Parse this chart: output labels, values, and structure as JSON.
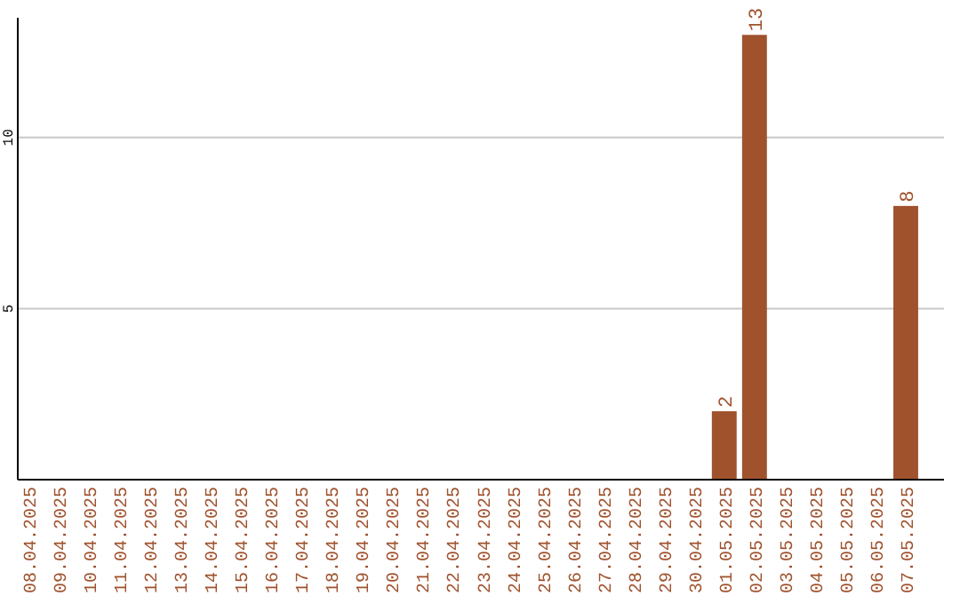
{
  "chart_data": {
    "type": "bar",
    "categories": [
      "08.04.2025",
      "09.04.2025",
      "10.04.2025",
      "11.04.2025",
      "12.04.2025",
      "13.04.2025",
      "14.04.2025",
      "15.04.2025",
      "16.04.2025",
      "17.04.2025",
      "18.04.2025",
      "19.04.2025",
      "20.04.2025",
      "21.04.2025",
      "22.04.2025",
      "23.04.2025",
      "24.04.2025",
      "25.04.2025",
      "26.04.2025",
      "27.04.2025",
      "28.04.2025",
      "29.04.2025",
      "30.04.2025",
      "01.05.2025",
      "02.05.2025",
      "03.05.2025",
      "04.05.2025",
      "05.05.2025",
      "06.05.2025",
      "07.05.2025"
    ],
    "values": [
      0,
      0,
      0,
      0,
      0,
      0,
      0,
      0,
      0,
      0,
      0,
      0,
      0,
      0,
      0,
      0,
      0,
      0,
      0,
      0,
      0,
      0,
      0,
      2,
      13,
      0,
      0,
      0,
      0,
      8
    ],
    "value_labels": [
      null,
      null,
      null,
      null,
      null,
      null,
      null,
      null,
      null,
      null,
      null,
      null,
      null,
      null,
      null,
      null,
      null,
      null,
      null,
      null,
      null,
      null,
      null,
      "2",
      "13",
      null,
      null,
      null,
      null,
      "8"
    ],
    "color": "#a0522d",
    "ylim": [
      0,
      13.5
    ],
    "yticks": [
      5,
      10
    ],
    "grid": "y"
  }
}
